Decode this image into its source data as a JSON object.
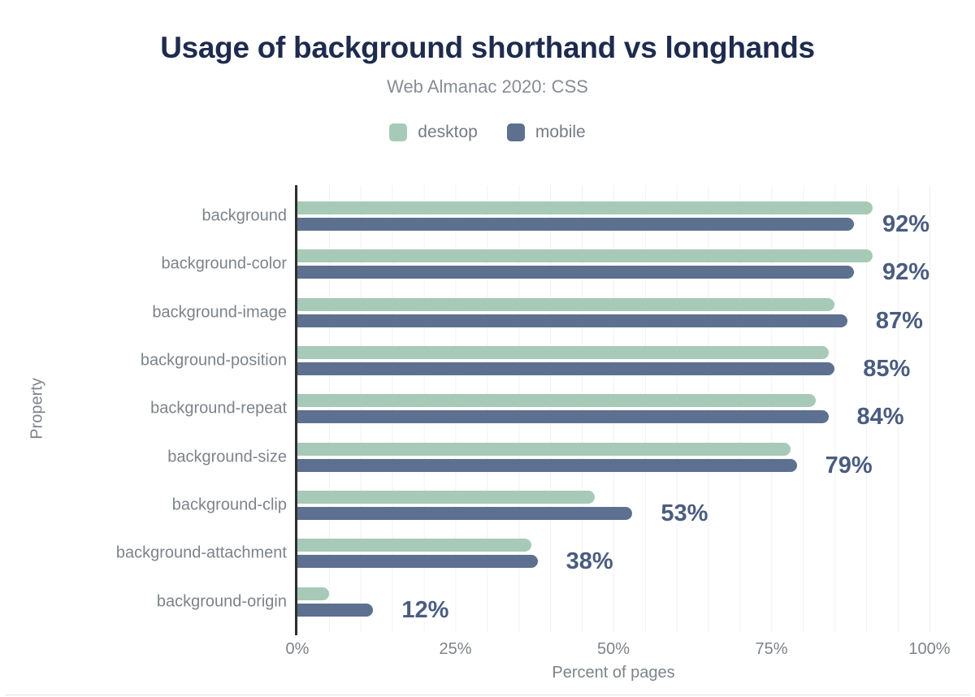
{
  "chart_data": {
    "type": "bar",
    "orientation": "horizontal",
    "title": "Usage of background shorthand vs longhands",
    "subtitle": "Web Almanac 2020: CSS",
    "xlabel": "Percent of pages",
    "ylabel": "Property",
    "xlim": [
      0,
      100
    ],
    "x_ticks": [
      "0%",
      "25%",
      "50%",
      "75%",
      "100%"
    ],
    "grid": "vertical lines every 5%, light gray",
    "legend_position": "top center",
    "categories": [
      "background",
      "background-color",
      "background-image",
      "background-position",
      "background-repeat",
      "background-size",
      "background-clip",
      "background-attachment",
      "background-origin"
    ],
    "series": [
      {
        "name": "desktop",
        "color": "#a6cab7",
        "values": [
          91,
          91,
          85,
          84,
          82,
          78,
          47,
          37,
          5
        ]
      },
      {
        "name": "mobile",
        "color": "#5d7090",
        "values": [
          92,
          92,
          87,
          85,
          84,
          79,
          53,
          38,
          12
        ]
      }
    ],
    "bar_labels": [
      "92%",
      "92%",
      "87%",
      "85%",
      "84%",
      "79%",
      "53%",
      "38%",
      "12%"
    ]
  },
  "colors": {
    "title": "#1e2b4e",
    "subtitle": "#878d95",
    "axis_text": "#7d838a",
    "value_label": "#4a5c80",
    "axis_line": "#2f2f2f",
    "gridline": "#f0f1f3",
    "background": "#ffffff"
  }
}
